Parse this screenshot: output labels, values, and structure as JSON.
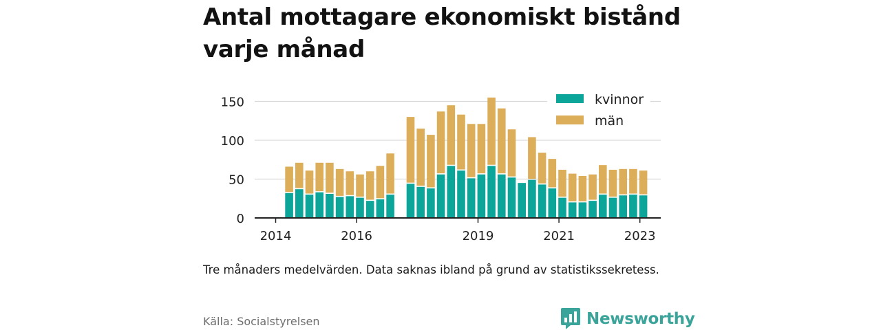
{
  "title": "Antal mottagare ekonomiskt bistånd varje månad",
  "note": "Tre månaders medelvärden. Data saknas ibland på grund av statistikssekretess.",
  "source": "Källa: Socialstyrelsen",
  "brand": "Newsworthy",
  "colors": {
    "kvinnor": "#0ca59a",
    "man": "#dcae5a",
    "grid": "#d9d9d9",
    "axis": "#222222",
    "brand": "#3aa39a"
  },
  "chart_data": {
    "type": "bar",
    "stacked": true,
    "grid": true,
    "legend_position": "top-right",
    "ylim": [
      0,
      150
    ],
    "yticks": [
      0,
      50,
      100,
      150
    ],
    "x_tick_labels": [
      "2014",
      "2016",
      "2019",
      "2021",
      "2023"
    ],
    "categories": [
      "2014-05",
      "2014-08",
      "2014-11",
      "2015-02",
      "2015-05",
      "2015-08",
      "2015-11",
      "2016-02",
      "2016-05",
      "2016-08",
      "2016-11",
      "2017-02",
      "2017-05",
      "2017-08",
      "2017-11",
      "2018-02",
      "2018-05",
      "2018-08",
      "2018-11",
      "2019-02",
      "2019-05",
      "2019-08",
      "2019-11",
      "2020-02",
      "2020-05",
      "2020-08",
      "2020-11",
      "2021-02",
      "2021-05",
      "2021-08",
      "2021-11",
      "2022-02",
      "2022-05",
      "2022-08",
      "2022-11",
      "2023-02"
    ],
    "series": [
      {
        "name": "kvinnor",
        "values": [
          32,
          37,
          30,
          33,
          31,
          27,
          28,
          26,
          22,
          24,
          30,
          null,
          44,
          40,
          38,
          56,
          67,
          61,
          51,
          56,
          67,
          56,
          52,
          45,
          49,
          43,
          38,
          26,
          20,
          20,
          22,
          30,
          26,
          29,
          30,
          29
        ]
      },
      {
        "name": "män",
        "values": [
          34,
          34,
          31,
          38,
          40,
          36,
          32,
          30,
          38,
          43,
          53,
          null,
          86,
          75,
          69,
          81,
          78,
          72,
          70,
          65,
          88,
          85,
          62,
          null,
          55,
          41,
          38,
          36,
          37,
          34,
          34,
          38,
          36,
          34,
          33,
          32
        ]
      }
    ]
  }
}
